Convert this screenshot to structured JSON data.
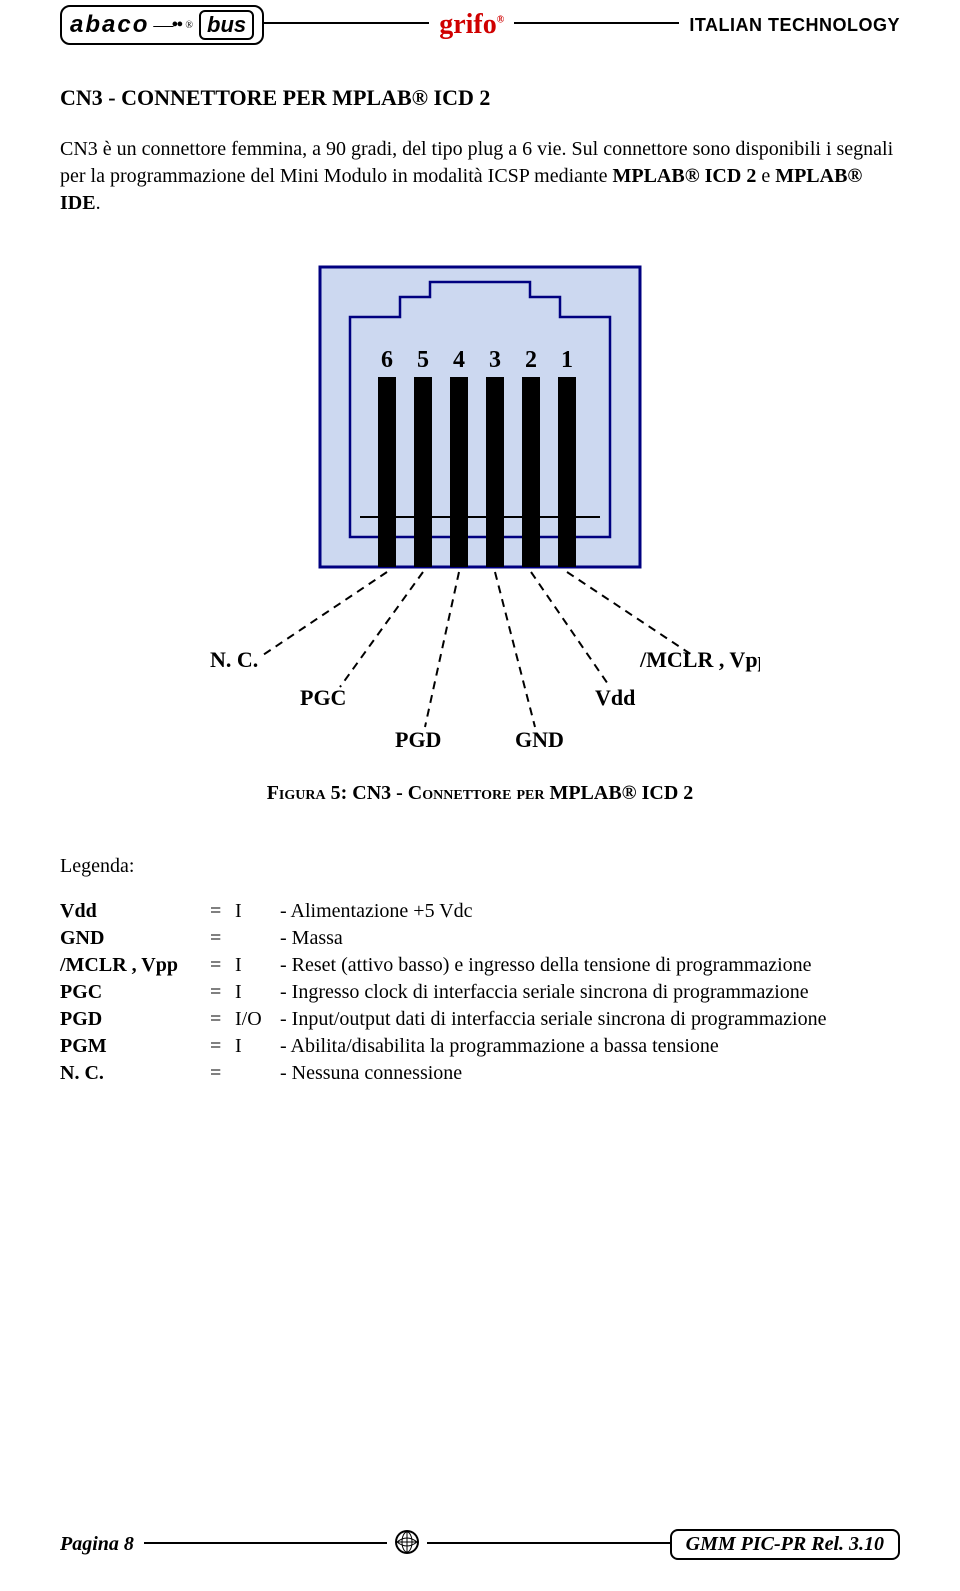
{
  "header": {
    "logo_abaco": "abaco",
    "logo_bus": "bus",
    "center_brand": "grifo",
    "right_brand": "ITALIAN TECHNOLOGY"
  },
  "section_title": "CN3 - CONNETTORE PER MPLAB® ICD 2",
  "body_text": "CN3 è un connettore femmina, a 90 gradi, del tipo plug a 6 vie. Sul connettore sono disponibili i segnali per la programmazione del Mini Modulo in modalità ICSP mediante ",
  "body_bold_1": "MPLAB® ICD 2",
  "body_mid": " e ",
  "body_bold_2": "MPLAB® IDE",
  "body_end": ".",
  "connector": {
    "outer_color": "#ccd8f0",
    "pin_color": "#000000",
    "border_color": "#000080",
    "pin_numbers": [
      "6",
      "5",
      "4",
      "3",
      "2",
      "1"
    ],
    "labels": {
      "nc": "N. C.",
      "pgc": "PGC",
      "pgd": "PGD",
      "gnd": "GND",
      "vdd": "Vdd",
      "mclr": "/MCLR , Vpp"
    }
  },
  "figure_caption_prefix": "Figura 5: CN3 - Connettore per",
  "figure_caption_suffix": " MPLAB® ICD 2",
  "legend_title": "Legenda:",
  "legend": [
    {
      "sig": "Vdd",
      "io": "I",
      "desc": "- Alimentazione +5 Vdc"
    },
    {
      "sig": "GND",
      "io": "",
      "desc": "- Massa"
    },
    {
      "sig": "/MCLR , Vpp",
      "io": "I",
      "desc": "- Reset (attivo basso) e ingresso della tensione di programmazione"
    },
    {
      "sig": "PGC",
      "io": "I",
      "desc": "- Ingresso clock di interfaccia seriale sincrona di programmazione"
    },
    {
      "sig": "PGD",
      "io": "I/O",
      "desc": "- Input/output dati di interfaccia seriale sincrona di programmazione"
    },
    {
      "sig": "PGM",
      "io": "I",
      "desc": "- Abilita/disabilita la programmazione a bassa tensione"
    },
    {
      "sig": "N. C.",
      "io": "",
      "desc": "- Nessuna connessione"
    }
  ],
  "footer": {
    "page_label": "Pagina 8",
    "doc_label": "GMM PIC-PR   Rel. 3.10"
  }
}
